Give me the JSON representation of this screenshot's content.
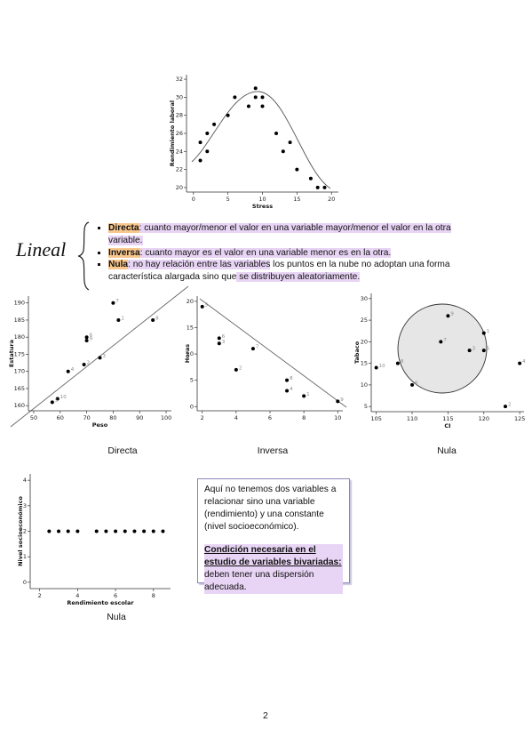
{
  "document": {
    "lineal": "Lineal",
    "bullets": [
      {
        "term": "Directa",
        "text": ": cuanto mayor/menor el valor en una variable mayor/menor el valor en la otra variable."
      },
      {
        "term": "Inversa",
        "text": ": cuanto mayor es el valor en una variable menor es en la otra."
      },
      {
        "term": "Nula",
        "text": ": no hay relación entre las variables",
        "text2": " los puntos en la nube no adoptan una forma característica alargada sino que",
        "text3": " se distribuyen aleatoriamente."
      }
    ],
    "box": {
      "p1": "Aquí no tenemos dos variables a relacionar sino una variable (rendimiento) y una constante (nivel socioeconómico).",
      "p2_bold": "Condición necesaria en el estudio de variables bivariadas:",
      "p2_rest": " deben tener una dispersión adecuada."
    },
    "page_number": "2"
  },
  "chart_data": [
    {
      "type": "scatter",
      "x_label": "Stress",
      "y_label": "Rendimiento laboral",
      "color": "#000000",
      "x": [
        1,
        1,
        2,
        2,
        3,
        5,
        6,
        8,
        9,
        9,
        10,
        10,
        12,
        13,
        14,
        15,
        17,
        18,
        19
      ],
      "values": [
        23,
        25,
        26,
        24,
        27,
        28,
        30,
        29,
        31,
        30,
        30,
        29,
        26,
        24,
        25,
        22,
        21,
        20,
        20
      ],
      "xlim": [
        -1,
        21
      ],
      "ylim": [
        19.5,
        32.5
      ],
      "xticks": [
        0,
        5,
        10,
        15,
        20
      ],
      "yticks": [
        20,
        22,
        24,
        26,
        28,
        30,
        32
      ]
    },
    {
      "type": "scatter",
      "x_label": "Peso",
      "y_label": "Estatura",
      "caption": "Directa",
      "color": "#000000",
      "x": [
        80,
        82,
        95,
        70,
        70,
        75,
        69,
        63,
        59,
        57
      ],
      "values": [
        190,
        185,
        185,
        180,
        179,
        174,
        172,
        170,
        162,
        161
      ],
      "point_labels": [
        "7",
        "1",
        "8",
        "6",
        "9",
        "3",
        "2",
        "4",
        "10",
        "5"
      ],
      "xlim": [
        48,
        102
      ],
      "ylim": [
        158.5,
        192
      ],
      "xticks": [
        50,
        60,
        70,
        80,
        90,
        100
      ],
      "yticks": [
        160,
        165,
        170,
        175,
        180,
        185,
        190
      ]
    },
    {
      "type": "scatter",
      "y_label": "Horas",
      "caption": "Inversa",
      "color": "#000000",
      "x": [
        2,
        3,
        3,
        4,
        5,
        7,
        7,
        8,
        10
      ],
      "values": [
        19,
        13,
        12,
        7,
        11,
        5,
        3,
        2,
        1
      ],
      "point_labels": [
        "5",
        "6",
        "3",
        "2",
        "7",
        "8",
        "4",
        "1",
        "9"
      ],
      "xlim": [
        1.7,
        10.3
      ],
      "ylim": [
        -0.8,
        21
      ],
      "xticks": [
        2,
        4,
        6,
        8,
        10
      ],
      "yticks": [
        0,
        5,
        10,
        15,
        20
      ]
    },
    {
      "type": "scatter",
      "x_label": "CI",
      "y_label": "Tabaco",
      "caption": "Nula",
      "color": "#000000",
      "x": [
        105,
        108,
        110,
        114,
        115,
        118,
        120,
        120,
        123,
        125
      ],
      "values": [
        14,
        15,
        10,
        20,
        26,
        18,
        22,
        18,
        5,
        15
      ],
      "point_labels": [
        "10",
        "8",
        "6",
        "7",
        "9",
        "3",
        "1",
        "5",
        "2",
        "4"
      ],
      "xlim": [
        104.3,
        125.6
      ],
      "ylim": [
        3.8,
        31.2
      ],
      "xticks": [
        105,
        110,
        115,
        120,
        125
      ],
      "yticks": [
        5,
        10,
        15,
        20,
        25,
        30
      ]
    },
    {
      "type": "scatter",
      "x_label": "Rendimiento escolar",
      "y_label": "Nivel socioeconómico",
      "caption": "Nula",
      "color": "#000000",
      "x": [
        2.5,
        3,
        3.5,
        4,
        5,
        5.5,
        6,
        6.5,
        7,
        7.5,
        8,
        8.5
      ],
      "values": [
        2,
        2,
        2,
        2,
        2,
        2,
        2,
        2,
        2,
        2,
        2,
        2
      ],
      "xlim": [
        1.5,
        8.9
      ],
      "ylim": [
        -0.25,
        4.25
      ],
      "xticks": [
        2,
        4,
        6,
        8
      ],
      "yticks": [
        0,
        1,
        2,
        3,
        4
      ]
    }
  ]
}
